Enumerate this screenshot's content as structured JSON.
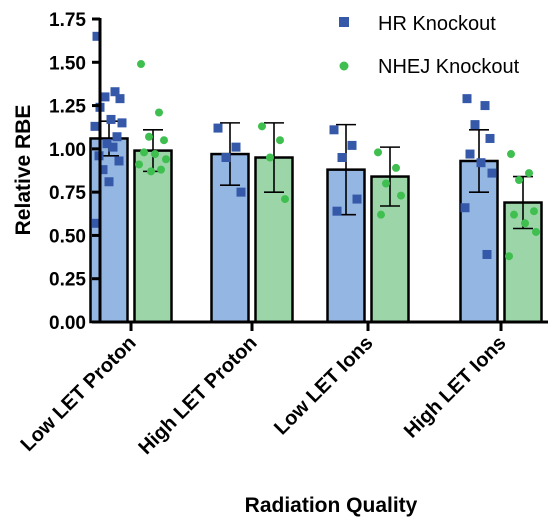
{
  "chart_data": {
    "type": "bar",
    "xlabel": "Radiation Quality",
    "ylabel": "Relative RBE",
    "ylim": [
      0,
      1.75
    ],
    "yticks": [
      "0.00",
      "0.25",
      "0.50",
      "0.75",
      "1.00",
      "1.25",
      "1.50",
      "1.75"
    ],
    "categories": [
      "Low LET Proton",
      "High LET Proton",
      "Low LET Ions",
      "High LET Ions"
    ],
    "legend_position": "top-right",
    "grid": false,
    "error_bars": true,
    "series": [
      {
        "name": "HR Knockout",
        "marker": "square",
        "bar_color": "#94B6E3",
        "point_color": "#3559A8",
        "values": [
          1.06,
          0.97,
          0.88,
          0.93
        ],
        "errors": [
          0.1,
          0.18,
          0.26,
          0.18
        ],
        "points": [
          [
            1.65,
            1.33,
            1.3,
            1.29,
            1.24,
            1.17,
            1.15,
            1.13,
            1.07,
            1.03,
            1.01,
            0.96,
            0.93,
            0.88,
            0.81,
            0.57
          ],
          [
            1.12,
            1.01,
            0.95,
            0.75
          ],
          [
            1.11,
            1.02,
            0.95,
            0.71,
            0.64
          ],
          [
            1.29,
            1.25,
            1.14,
            1.06,
            0.97,
            0.92,
            0.86,
            0.66,
            0.39
          ]
        ]
      },
      {
        "name": "NHEJ Knockout",
        "marker": "circle",
        "bar_color": "#9CD6A8",
        "point_color": "#3FBF4F",
        "values": [
          0.99,
          0.95,
          0.84,
          0.69
        ],
        "errors": [
          0.12,
          0.2,
          0.17,
          0.15
        ],
        "points": [
          [
            1.49,
            1.21,
            1.07,
            1.05,
            0.98,
            0.97,
            0.94,
            0.91,
            0.88,
            0.87
          ],
          [
            1.13,
            1.05,
            0.95,
            0.71
          ],
          [
            0.98,
            0.89,
            0.8,
            0.73,
            0.62
          ],
          [
            0.97,
            0.86,
            0.82,
            0.64,
            0.62,
            0.57,
            0.52,
            0.38
          ]
        ]
      }
    ]
  }
}
